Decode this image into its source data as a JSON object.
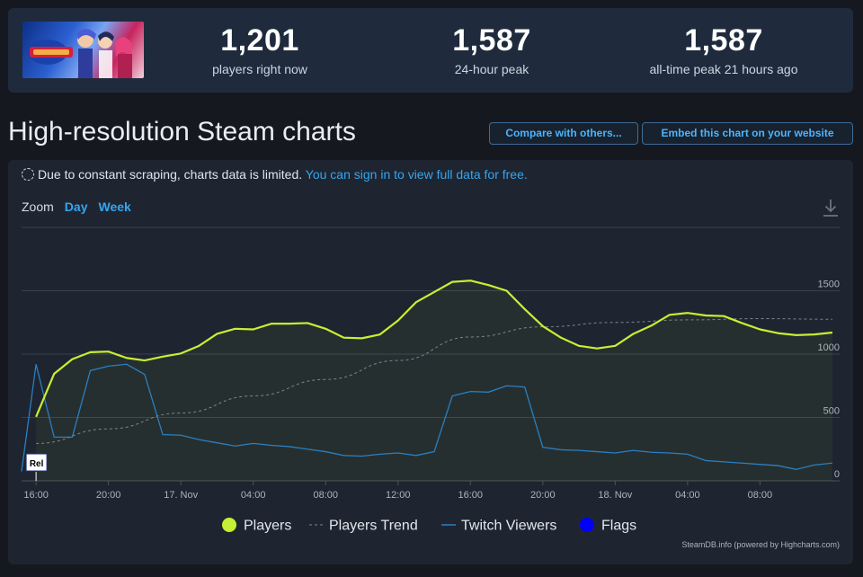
{
  "stats": [
    {
      "value": "1,201",
      "label": "players right now"
    },
    {
      "value": "1,587",
      "label": "24-hour peak"
    },
    {
      "value": "1,587",
      "label": "all-time peak 21 hours ago"
    }
  ],
  "page_title": "High-resolution Steam charts",
  "buttons": {
    "compare": "Compare with others...",
    "embed": "Embed this chart on your website"
  },
  "notice": {
    "text": "Due to constant scraping, charts data is limited.",
    "link": "You can sign in to view full data for free."
  },
  "zoom": {
    "label": "Zoom",
    "day": "Day",
    "week": "Week"
  },
  "credit": "SteamDB.info (powered by Highcharts.com)",
  "colors": {
    "players": "#c6f033",
    "trend": "#7d858f",
    "twitch": "#2a7fc0",
    "flags": "#0000ff",
    "accent": "#35a5f0"
  },
  "chart_data": {
    "type": "line",
    "x_ticks": [
      "16:00",
      "20:00",
      "17. Nov",
      "04:00",
      "08:00",
      "12:00",
      "16:00",
      "20:00",
      "18. Nov",
      "04:00",
      "08:00"
    ],
    "y_ticks": [
      0,
      500,
      1000,
      1500
    ],
    "ylim": [
      0,
      2000
    ],
    "xlim_hours": [
      -0.8,
      44.4
    ],
    "legend": [
      "Players",
      "Players Trend",
      "Twitch Viewers",
      "Flags"
    ],
    "legend_position": "bottom-center",
    "flag_label": "Rel",
    "grid": true,
    "series": [
      {
        "name": "Players",
        "x_hours": [
          0,
          1,
          2,
          3,
          4,
          5,
          6,
          7,
          8,
          9,
          10,
          11,
          12,
          13,
          14,
          15,
          16,
          17,
          18,
          19,
          20,
          21,
          22,
          23,
          24,
          25,
          26,
          27,
          28,
          29,
          30,
          31,
          32,
          33,
          34,
          35,
          36,
          37,
          38,
          39,
          40,
          41,
          42,
          43,
          44
        ],
        "values": [
          505,
          845,
          960,
          1015,
          1020,
          970,
          950,
          980,
          1005,
          1065,
          1160,
          1200,
          1195,
          1240,
          1240,
          1245,
          1200,
          1130,
          1125,
          1155,
          1265,
          1410,
          1490,
          1570,
          1580,
          1545,
          1500,
          1355,
          1220,
          1130,
          1065,
          1045,
          1065,
          1160,
          1225,
          1310,
          1325,
          1305,
          1300,
          1245,
          1195,
          1165,
          1150,
          1155,
          1170
        ]
      },
      {
        "name": "Players Trend",
        "x_hours": [
          0,
          4,
          8,
          12,
          16,
          20,
          24,
          28,
          32,
          36,
          40,
          44
        ],
        "values": [
          295,
          410,
          535,
          670,
          800,
          950,
          1135,
          1215,
          1250,
          1270,
          1280,
          1275
        ]
      },
      {
        "name": "Twitch Viewers",
        "x_hours": [
          -0.8,
          0,
          1,
          2,
          3,
          4,
          5,
          6,
          7,
          8,
          9,
          10,
          11,
          12,
          13,
          14,
          15,
          16,
          17,
          18,
          19,
          20,
          21,
          22,
          23,
          24,
          25,
          26,
          27,
          28,
          29,
          30,
          31,
          32,
          33,
          34,
          35,
          36,
          37,
          38,
          39,
          40,
          41,
          42,
          43,
          44
        ],
        "values": [
          75,
          920,
          345,
          345,
          870,
          905,
          920,
          840,
          365,
          360,
          325,
          300,
          275,
          295,
          280,
          270,
          250,
          230,
          200,
          195,
          210,
          220,
          200,
          230,
          670,
          705,
          700,
          750,
          740,
          265,
          245,
          240,
          230,
          220,
          240,
          225,
          220,
          210,
          160,
          150,
          140,
          130,
          120,
          90,
          125,
          140
        ]
      },
      {
        "name": "Flags",
        "x_hours": [
          0
        ],
        "values": [
          0
        ]
      }
    ]
  }
}
